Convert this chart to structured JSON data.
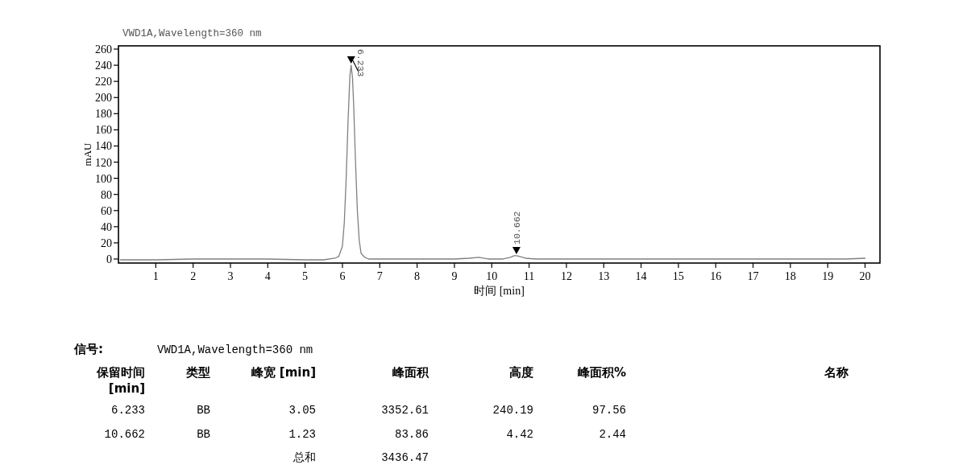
{
  "chart_data": [
    {
      "type": "line",
      "title": "VWD1A,Wavelength=360 nm",
      "xlabel": "时间 [min]",
      "ylabel": "mAU",
      "color": "#808080",
      "x": [
        0.05,
        1,
        2,
        3,
        4,
        5,
        5.5,
        5.8,
        5.9,
        6.0,
        6.05,
        6.1,
        6.15,
        6.2,
        6.233,
        6.27,
        6.3,
        6.35,
        6.4,
        6.45,
        6.5,
        6.6,
        6.7,
        6.9,
        7.5,
        8,
        9,
        9.4,
        9.65,
        9.9,
        10.3,
        10.5,
        10.6,
        10.662,
        10.75,
        10.9,
        11.2,
        12,
        14,
        16,
        18,
        19.5,
        20
      ],
      "values": [
        -1,
        -1,
        0,
        0,
        0,
        -1,
        -1,
        1,
        3,
        16,
        45,
        99,
        170,
        227,
        240,
        224,
        192,
        121,
        60,
        23,
        7,
        2,
        0,
        0,
        0,
        0,
        0,
        1,
        2,
        0,
        0,
        2,
        4,
        4,
        3,
        1,
        0,
        0,
        0,
        0,
        0,
        0,
        1
      ],
      "xlim": [
        0,
        20.4
      ],
      "ylim": [
        -5,
        264
      ],
      "xticks": [
        1,
        2,
        3,
        4,
        5,
        6,
        7,
        8,
        9,
        10,
        11,
        12,
        13,
        14,
        15,
        16,
        17,
        18,
        19,
        20
      ],
      "yticks": [
        0,
        20,
        40,
        60,
        80,
        100,
        120,
        140,
        160,
        180,
        200,
        220,
        240,
        260
      ],
      "annotations": [
        {
          "text": "6.233",
          "x": 6.233,
          "y": 240
        },
        {
          "text": "10.662",
          "x": 10.662,
          "y": 4
        }
      ]
    },
    {
      "type": "other",
      "title": "信号:",
      "subtitle": "VWD1A,Wavelength=360 nm",
      "annotations": [
        "保留时间 [min]",
        "类型",
        "峰宽 [min]",
        "峰面积",
        "高度",
        "峰面积%",
        "名称",
        "6.233",
        "BB",
        "3.05",
        "3352.61",
        "240.19",
        "97.56",
        "10.662",
        "BB",
        "1.23",
        "83.86",
        "4.42",
        "2.44",
        "总和",
        "3436.47"
      ]
    }
  ]
}
